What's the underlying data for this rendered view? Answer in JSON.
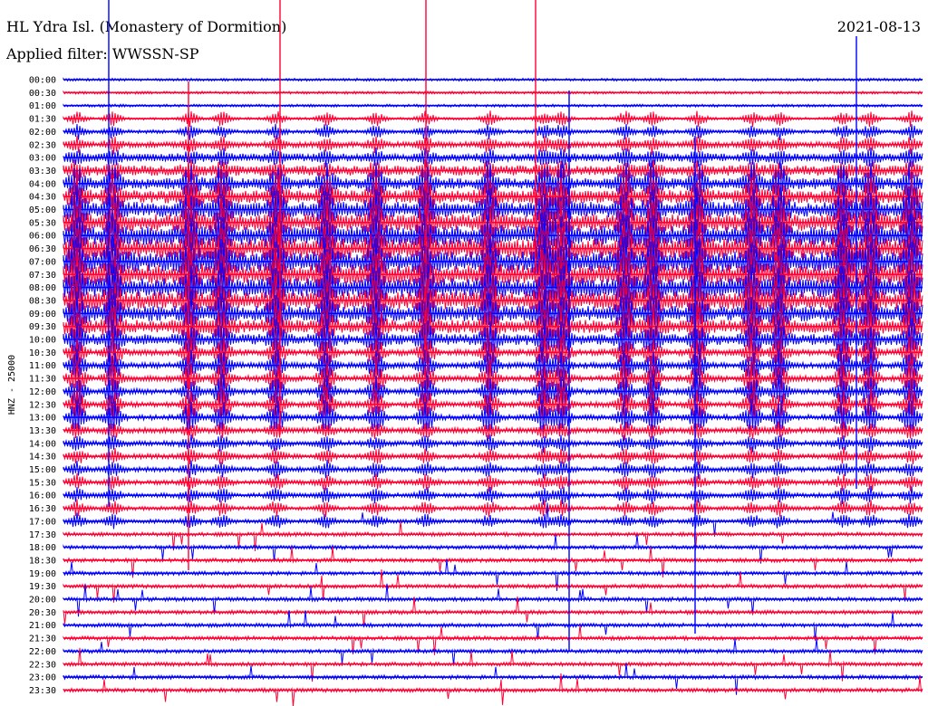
{
  "header": {
    "station": "HL Ydra Isl. (Monastery of Dormition)",
    "filter": "Applied filter: WWSSN-SP",
    "date": "2021-08-13"
  },
  "chart_data": {
    "type": "line",
    "title": "HL Ydra Isl. (Monastery of Dormition)",
    "subtitle": "Applied filter: WWSSN-SP",
    "date": "2021-08-13",
    "ylabel": "HNZ - 25000",
    "xlabel": "",
    "grid": false,
    "colors": [
      "#0000ff",
      "#ff0033"
    ],
    "rows": [
      "00:00",
      "00:30",
      "01:00",
      "01:30",
      "02:00",
      "02:30",
      "03:00",
      "03:30",
      "04:00",
      "04:30",
      "05:00",
      "05:30",
      "06:00",
      "06:30",
      "07:00",
      "07:30",
      "08:00",
      "08:30",
      "09:00",
      "09:30",
      "10:00",
      "10:30",
      "11:00",
      "11:30",
      "12:00",
      "12:30",
      "13:00",
      "13:30",
      "14:00",
      "14:30",
      "15:00",
      "15:30",
      "16:00",
      "16:30",
      "17:00",
      "17:30",
      "18:00",
      "18:30",
      "19:00",
      "19:30",
      "20:00",
      "20:30",
      "21:00",
      "21:30",
      "22:00",
      "22:30",
      "23:00",
      "23:30"
    ],
    "activity_peak_rows": [
      8,
      20
    ],
    "strong_event_minutes": [
      2,
      5,
      9,
      15,
      19,
      21,
      23
    ]
  }
}
